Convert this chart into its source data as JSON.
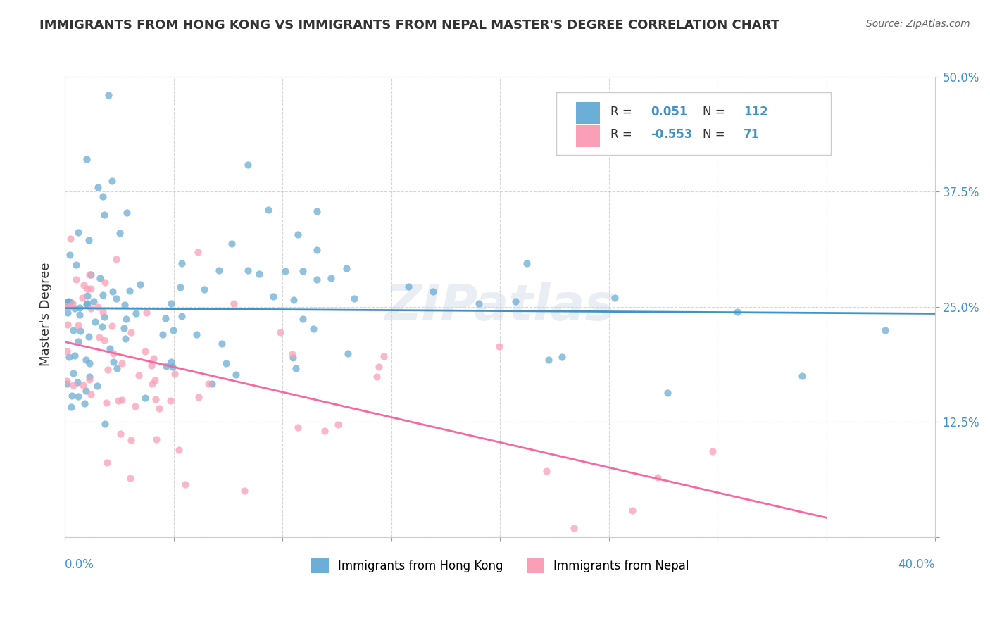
{
  "title": "IMMIGRANTS FROM HONG KONG VS IMMIGRANTS FROM NEPAL MASTER'S DEGREE CORRELATION CHART",
  "source": "Source: ZipAtlas.com",
  "ylabel": "Master's Degree",
  "y_ticks": [
    0.0,
    0.125,
    0.25,
    0.375,
    0.5
  ],
  "y_tick_labels": [
    "",
    "12.5%",
    "25.0%",
    "37.5%",
    "50.0%"
  ],
  "x_ticks": [
    0.0,
    0.05,
    0.1,
    0.15,
    0.2,
    0.25,
    0.3,
    0.35,
    0.4
  ],
  "xlim": [
    0.0,
    0.4
  ],
  "ylim": [
    0.0,
    0.5
  ],
  "legend_R1": "0.051",
  "legend_N1": "112",
  "legend_R2": "-0.553",
  "legend_N2": "71",
  "blue_color": "#6baed6",
  "pink_color": "#fa9fb5",
  "blue_line_color": "#4292c6",
  "pink_line_color": "#f768a1",
  "watermark": "ZIPatlas",
  "label_hk": "Immigrants from Hong Kong",
  "label_nepal": "Immigrants from Nepal"
}
